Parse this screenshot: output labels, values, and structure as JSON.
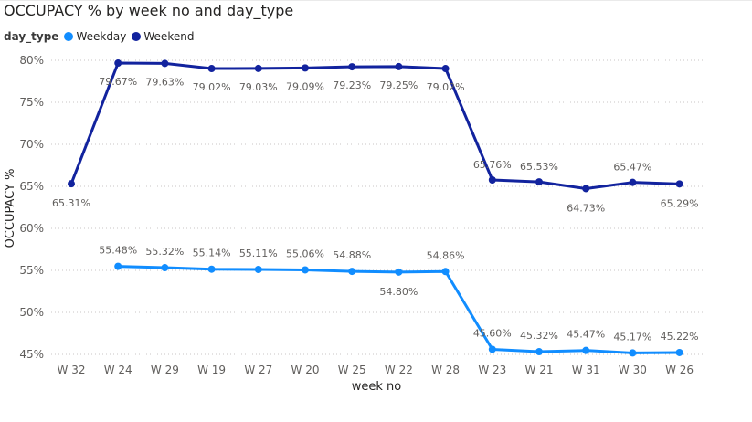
{
  "chart_data": {
    "type": "line",
    "title": "OCCUPACY % by week no and day_type",
    "xlabel": "week no",
    "ylabel": "OCCUPACY %",
    "legend_title": "day_type",
    "legend_position": "top-left",
    "grid": true,
    "categories": [
      "W 32",
      "W 24",
      "W 29",
      "W 19",
      "W 27",
      "W 20",
      "W 25",
      "W 22",
      "W 28",
      "W 23",
      "W 21",
      "W 31",
      "W 30",
      "W 26"
    ],
    "y_ticks": [
      "45%",
      "50%",
      "55%",
      "60%",
      "65%",
      "70%",
      "75%",
      "80%"
    ],
    "ylim": [
      45,
      80
    ],
    "series": [
      {
        "name": "Weekday",
        "color": "#118DFF",
        "values": [
          null,
          55.48,
          55.32,
          55.14,
          55.11,
          55.06,
          54.88,
          54.8,
          54.86,
          45.6,
          45.32,
          45.47,
          45.17,
          45.22
        ],
        "labels": [
          null,
          "55.48%",
          "55.32%",
          "55.14%",
          "55.11%",
          "55.06%",
          "54.88%",
          "54.80%",
          "54.86%",
          "45.60%",
          "45.32%",
          "45.47%",
          "45.17%",
          "45.22%"
        ]
      },
      {
        "name": "Weekend",
        "color": "#12239E",
        "values": [
          65.31,
          79.67,
          79.63,
          79.02,
          79.03,
          79.09,
          79.23,
          79.25,
          79.02,
          65.76,
          65.53,
          64.73,
          65.47,
          65.29
        ],
        "labels": [
          "65.31%",
          "79.67%",
          "79.63%",
          "79.02%",
          "79.03%",
          "79.09%",
          "79.23%",
          "79.25%",
          "79.02%",
          "65.76%",
          "65.53%",
          "64.73%",
          "65.47%",
          "65.29%"
        ]
      }
    ]
  }
}
